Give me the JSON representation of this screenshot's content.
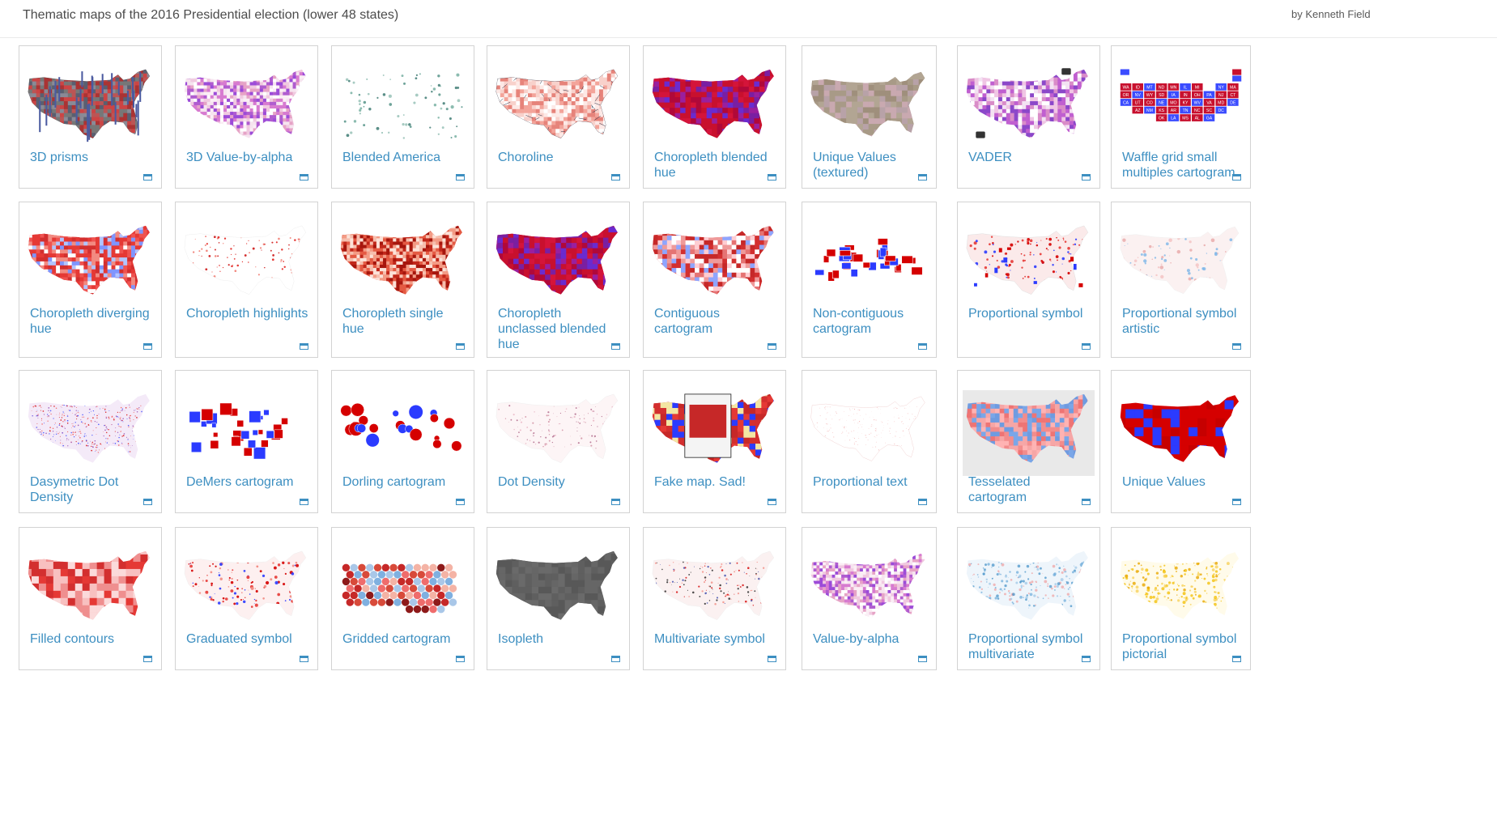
{
  "header": {
    "title": "Thematic maps of the 2016 Presidential election (lower 48 states)",
    "byline": "by Kenneth Field"
  },
  "colors": {
    "accent_link": "#3d8fc1",
    "republican_red": "#d7191c",
    "democrat_blue": "#2b3bff",
    "card_border": "#d3d3d3"
  },
  "cards": [
    {
      "label": "3D prisms",
      "style": "prisms"
    },
    {
      "label": "3D Value-by-alpha",
      "style": "purple-light"
    },
    {
      "label": "Blended America",
      "style": "scatter-green"
    },
    {
      "label": "Choroline",
      "style": "choroline"
    },
    {
      "label": "Choropleth blended hue",
      "style": "purple-red"
    },
    {
      "label": "Unique Values (textured)",
      "style": "textured"
    },
    {
      "label": "VADER",
      "style": "vader"
    },
    {
      "label": "Waffle grid small multiples cartogram",
      "style": "waffle"
    },
    {
      "label": "Choropleth diverging hue",
      "style": "red-blue"
    },
    {
      "label": "Choropleth highlights",
      "style": "white-dots"
    },
    {
      "label": "Choropleth single hue",
      "style": "red-mono"
    },
    {
      "label": "Choropleth unclassed blended hue",
      "style": "purple-red"
    },
    {
      "label": "Contiguous cartogram",
      "style": "warped"
    },
    {
      "label": "Non-contiguous cartogram",
      "style": "blocks-rb"
    },
    {
      "label": "Proportional symbol",
      "style": "prop-sym"
    },
    {
      "label": "Proportional symbol artistic",
      "style": "light-blue-dots"
    },
    {
      "label": "Dasymetric Dot Density",
      "style": "dots-rb"
    },
    {
      "label": "DeMers cartogram",
      "style": "squares-rb"
    },
    {
      "label": "Dorling cartogram",
      "style": "circles-rb"
    },
    {
      "label": "Dot Density",
      "style": "pale-dots"
    },
    {
      "label": "Fake map. Sad!",
      "style": "fake"
    },
    {
      "label": "Proportional text",
      "style": "pale-text"
    },
    {
      "label": "Tesselated cartogram",
      "style": "hex-pastel"
    },
    {
      "label": "Unique Values",
      "style": "unique-rb"
    },
    {
      "label": "Filled contours",
      "style": "contours"
    },
    {
      "label": "Graduated symbol",
      "style": "grad-sym"
    },
    {
      "label": "Gridded cartogram",
      "style": "gridded"
    },
    {
      "label": "Isopleth",
      "style": "gray"
    },
    {
      "label": "Multivariate symbol",
      "style": "multi-sym"
    },
    {
      "label": "Value-by-alpha",
      "style": "purple-light"
    },
    {
      "label": "Proportional symbol multivariate",
      "style": "blue-dots"
    },
    {
      "label": "Proportional symbol pictorial",
      "style": "yellow-dots"
    }
  ]
}
